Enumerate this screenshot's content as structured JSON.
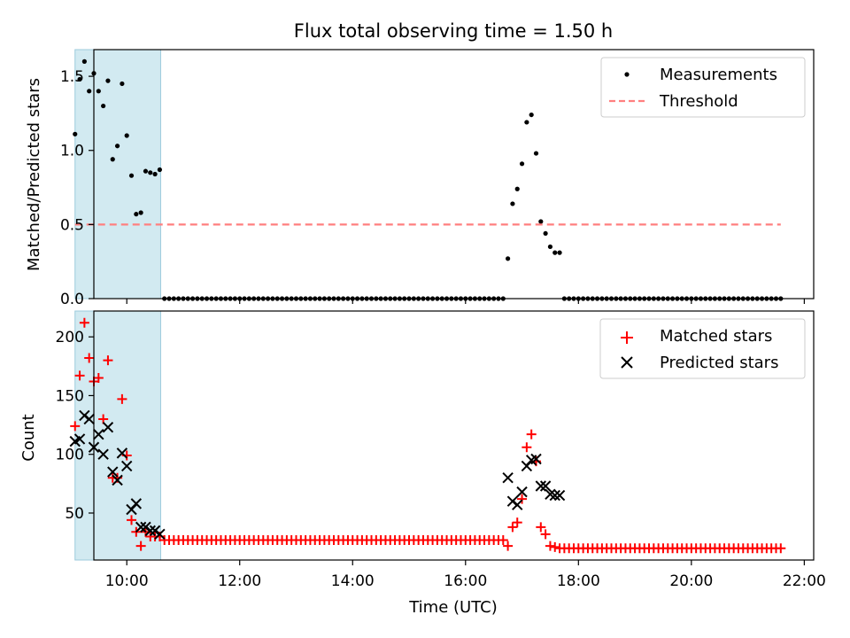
{
  "chart_data": [
    {
      "type": "scatter",
      "title": "Flux total observing time = 1.50 h",
      "xlabel": "",
      "ylabel": "Matched/Predicted stars",
      "xlim": [
        "09:25",
        "22:10"
      ],
      "ylim": [
        0,
        1.68
      ],
      "x_ticks": [
        "10:00",
        "12:00",
        "14:00",
        "16:00",
        "18:00",
        "20:00",
        "22:00"
      ],
      "y_ticks": [
        "0.0",
        "0.5",
        "1.0",
        "1.5"
      ],
      "y_tick_values": [
        0,
        0.5,
        1.0,
        1.5
      ],
      "shaded_span": {
        "from": "09:05",
        "to": "10:36",
        "color": "#add8e6"
      },
      "legend_position": "upper right",
      "grid": false,
      "series": [
        {
          "name": "Measurements",
          "marker": "dot",
          "color": "#000000",
          "x": [
            "09:05",
            "09:10",
            "09:15",
            "09:20",
            "09:25",
            "09:30",
            "09:35",
            "09:40",
            "09:45",
            "09:50",
            "09:55",
            "10:00",
            "10:05",
            "10:10",
            "10:15",
            "10:20",
            "10:25",
            "10:30",
            "10:35"
          ],
          "y": [
            1.11,
            1.48,
            1.6,
            1.4,
            1.52,
            1.4,
            1.3,
            1.47,
            0.94,
            1.03,
            1.45,
            1.1,
            0.83,
            0.57,
            0.58,
            0.86,
            0.85,
            0.84,
            0.87
          ]
        },
        {
          "name": "Measurements",
          "marker": "dot",
          "color": "#000000",
          "x": [
            "16:45",
            "16:50",
            "16:55",
            "17:00",
            "17:05",
            "17:10",
            "17:15",
            "17:20",
            "17:25",
            "17:30",
            "17:35",
            "17:40"
          ],
          "y": [
            0.27,
            0.64,
            0.74,
            0.91,
            1.19,
            1.24,
            0.98,
            0.52,
            0.44,
            0.35,
            0.31,
            0.31
          ]
        },
        {
          "name": "Measurements",
          "marker": "dot",
          "color": "#000000",
          "zero_runs": [
            {
              "from": "10:40",
              "to": "16:40",
              "step_min": 5,
              "y": 0
            },
            {
              "from": "17:45",
              "to": "21:35",
              "step_min": 5,
              "y": 0
            }
          ]
        },
        {
          "name": "Threshold",
          "style": "dashed",
          "color": "#ff7f7f",
          "x": [
            "09:05",
            "21:35"
          ],
          "y": [
            0.5,
            0.5
          ]
        }
      ]
    },
    {
      "type": "scatter",
      "title": "",
      "xlabel": "Time (UTC)",
      "ylabel": "Count",
      "xlim": [
        "09:25",
        "22:10"
      ],
      "ylim": [
        10,
        222
      ],
      "x_ticks": [
        "10:00",
        "12:00",
        "14:00",
        "16:00",
        "18:00",
        "20:00",
        "22:00"
      ],
      "y_ticks": [
        "50",
        "100",
        "150",
        "200"
      ],
      "y_tick_values": [
        50,
        100,
        150,
        200
      ],
      "shaded_span": {
        "from": "09:05",
        "to": "10:36",
        "color": "#add8e6"
      },
      "legend_position": "upper right",
      "grid": false,
      "series": [
        {
          "name": "Matched stars",
          "marker": "plus",
          "color": "#ff0000",
          "x": [
            "09:05",
            "09:10",
            "09:15",
            "09:20",
            "09:25",
            "09:30",
            "09:35",
            "09:40",
            "09:45",
            "09:50",
            "09:55",
            "10:00",
            "10:05",
            "10:10",
            "10:15",
            "10:20",
            "10:25",
            "10:30",
            "10:35"
          ],
          "y": [
            124,
            167,
            212,
            182,
            162,
            165,
            130,
            180,
            80,
            80,
            147,
            99,
            44,
            34,
            22,
            34,
            30,
            30,
            30
          ]
        },
        {
          "name": "Matched stars",
          "marker": "plus",
          "color": "#ff0000",
          "zero_runs": [
            {
              "from": "10:40",
              "to": "16:40",
              "step_min": 5,
              "y": 27
            }
          ]
        },
        {
          "name": "Matched stars",
          "marker": "plus",
          "color": "#ff0000",
          "x": [
            "16:45",
            "16:50",
            "16:55",
            "17:00",
            "17:05",
            "17:10",
            "17:15",
            "17:20",
            "17:25",
            "17:30",
            "17:35",
            "17:40"
          ],
          "y": [
            22,
            38,
            42,
            62,
            106,
            117,
            94,
            38,
            32,
            22,
            21,
            20
          ]
        },
        {
          "name": "Matched stars",
          "marker": "plus",
          "color": "#ff0000",
          "zero_runs": [
            {
              "from": "17:45",
              "to": "21:35",
              "step_min": 5,
              "y": 20
            }
          ]
        },
        {
          "name": "Predicted stars",
          "marker": "x",
          "color": "#000000",
          "x": [
            "09:05",
            "09:10",
            "09:15",
            "09:20",
            "09:25",
            "09:30",
            "09:35",
            "09:40",
            "09:45",
            "09:50",
            "09:55",
            "10:00",
            "10:05",
            "10:10",
            "10:15",
            "10:20",
            "10:25",
            "10:30",
            "10:35"
          ],
          "y": [
            111,
            113,
            133,
            130,
            106,
            117,
            100,
            123,
            85,
            78,
            101,
            90,
            53,
            58,
            38,
            38,
            35,
            35,
            32
          ]
        },
        {
          "name": "Predicted stars",
          "marker": "x",
          "color": "#000000",
          "x": [
            "16:45",
            "16:50",
            "16:55",
            "17:00",
            "17:05",
            "17:10",
            "17:15",
            "17:20",
            "17:25",
            "17:30",
            "17:35",
            "17:40"
          ],
          "y": [
            80,
            60,
            57,
            68,
            90,
            95,
            96,
            73,
            73,
            66,
            65,
            65
          ]
        }
      ]
    }
  ]
}
